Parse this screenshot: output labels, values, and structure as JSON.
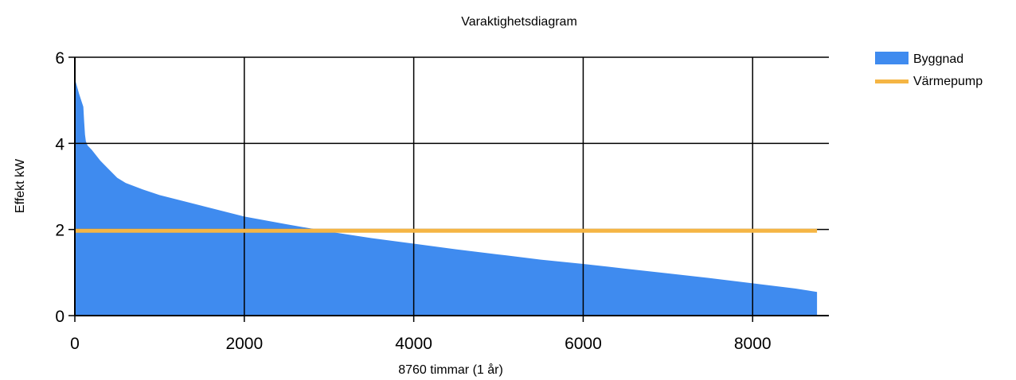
{
  "chart_data": {
    "type": "area",
    "title": "Varaktighetsdiagram",
    "xlabel": "8760 timmar (1 år)",
    "ylabel": "Effekt kW",
    "xlim": [
      0,
      8900
    ],
    "ylim": [
      0,
      6
    ],
    "xticks": [
      0,
      2000,
      4000,
      6000,
      8000
    ],
    "yticks": [
      0,
      2,
      4,
      6
    ],
    "grid": true,
    "legend_position": "top-right",
    "series": [
      {
        "name": "Byggnad",
        "type": "area",
        "color": "#3f8bef",
        "x": [
          0,
          50,
          100,
          110,
          120,
          130,
          150,
          200,
          300,
          400,
          500,
          600,
          800,
          1000,
          1500,
          2000,
          2500,
          3000,
          3500,
          4000,
          4500,
          5000,
          5500,
          6000,
          6500,
          7000,
          7500,
          8000,
          8500,
          8760
        ],
        "y": [
          5.5,
          5.15,
          4.85,
          4.5,
          4.2,
          4.05,
          3.95,
          3.85,
          3.6,
          3.4,
          3.2,
          3.08,
          2.93,
          2.8,
          2.55,
          2.3,
          2.12,
          1.95,
          1.8,
          1.67,
          1.54,
          1.42,
          1.3,
          1.2,
          1.09,
          0.98,
          0.87,
          0.75,
          0.63,
          0.55
        ]
      },
      {
        "name": "Värmepump",
        "type": "line",
        "color": "#f5b544",
        "x": [
          0,
          8760
        ],
        "y": [
          1.97,
          1.97
        ]
      }
    ]
  }
}
